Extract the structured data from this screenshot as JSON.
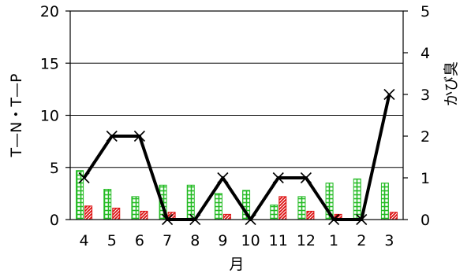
{
  "chart_data": {
    "type": "bar",
    "categories": [
      "4",
      "5",
      "6",
      "7",
      "8",
      "9",
      "10",
      "11",
      "12",
      "1",
      "2",
      "3"
    ],
    "xlabel": "月",
    "ylabel_left": "T—N・T—P",
    "ylabel_right": "かび臭",
    "ylim_left": [
      0,
      20
    ],
    "ylim_right": [
      0,
      5
    ],
    "yticks_left": [
      "0",
      "5",
      "10",
      "15",
      "20"
    ],
    "yticks_right": [
      "0",
      "1",
      "2",
      "3",
      "4",
      "5"
    ],
    "grid": true,
    "series": [
      {
        "key": "tn",
        "axis": "left",
        "style": "bar",
        "pattern": "green-grid",
        "values": [
          4.7,
          2.9,
          2.2,
          3.3,
          3.3,
          2.5,
          2.8,
          1.4,
          2.2,
          3.5,
          3.9,
          3.5
        ]
      },
      {
        "key": "tp",
        "axis": "left",
        "style": "bar",
        "pattern": "red-hatch",
        "values": [
          1.3,
          1.1,
          0.8,
          0.7,
          0.0,
          0.5,
          0.0,
          2.2,
          0.8,
          0.5,
          0.0,
          0.7
        ]
      },
      {
        "key": "kabi",
        "axis": "right",
        "style": "line",
        "marker": "x",
        "values": [
          1,
          2,
          2,
          0,
          0,
          1,
          0,
          1,
          1,
          0,
          0,
          3
        ]
      }
    ],
    "colors": {
      "tn": "#22bb22",
      "tp": "#dd1111",
      "line": "#000000",
      "grid": "#000000"
    }
  }
}
